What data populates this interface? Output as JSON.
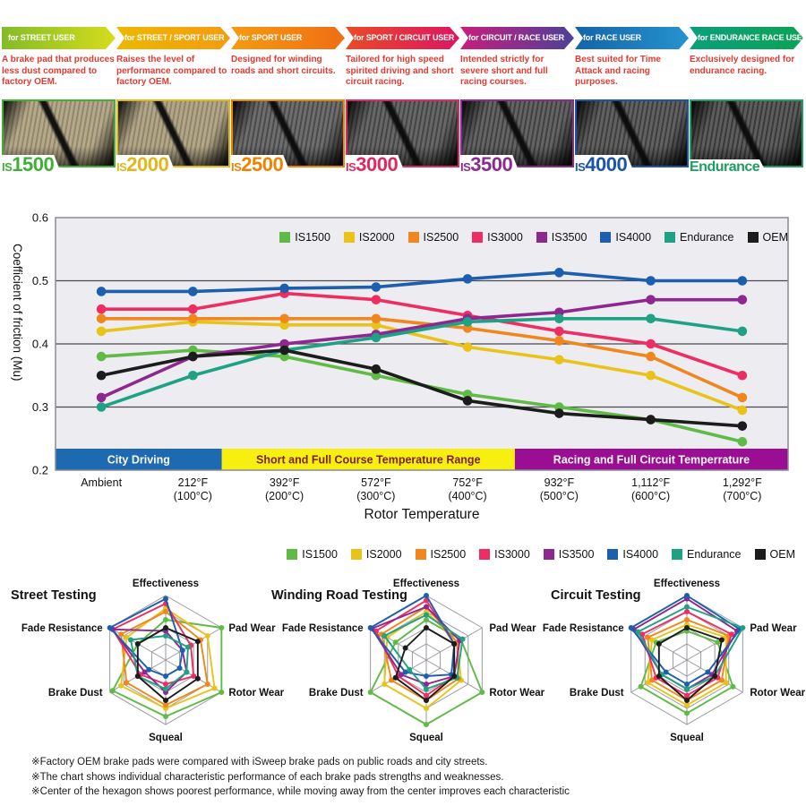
{
  "products": [
    {
      "arrow_label": "for STREET USER",
      "description": "A brake pad that produces less dust compared to factory OEM.",
      "name": "IS1500",
      "color": "#3faf36",
      "arrow_colors": [
        "#83bc28",
        "#d6dc1c"
      ],
      "pad_colors": [
        "#b5a98c",
        "#94886b"
      ]
    },
    {
      "arrow_label": "for STREET / SPORT USER",
      "description": "Raises the level of performance compared to factory OEM.",
      "name": "IS2000",
      "color": "#e3b619",
      "arrow_colors": [
        "#ecb800",
        "#f59b0f"
      ],
      "pad_colors": [
        "#b2a689",
        "#90856a"
      ]
    },
    {
      "arrow_label": "for SPORT USER",
      "description": "Designed for winding roads and short circuits.",
      "name": "IS2500",
      "color": "#ef8200",
      "arrow_colors": [
        "#f59b0f",
        "#f06d15"
      ],
      "pad_colors": [
        "#6e6e6e",
        "#4b4b4b"
      ]
    },
    {
      "arrow_label": "for SPORT / CIRCUIT USER",
      "description": "Tailored for high speed spirited driving and short circuit racing.",
      "name": "IS3000",
      "color": "#e02a5f",
      "arrow_colors": [
        "#ea4a26",
        "#da1663"
      ],
      "pad_colors": [
        "#676767",
        "#454545"
      ]
    },
    {
      "arrow_label": "for CIRCUIT / RACE USER",
      "description": "Intended strictly for severe short and full racing courses.",
      "name": "IS3500",
      "color": "#8d2a8f",
      "arrow_colors": [
        "#c91d7c",
        "#4c4198"
      ],
      "pad_colors": [
        "#646464",
        "#414141"
      ]
    },
    {
      "arrow_label": "for RACE USER",
      "description": "Best suited for Time Attack and racing purposes.",
      "name": "IS4000",
      "color": "#1b55a8",
      "arrow_colors": [
        "#1464a8",
        "#2693ce"
      ],
      "pad_colors": [
        "#616161",
        "#3e3e3e"
      ]
    },
    {
      "arrow_label": "for ENDURANCE RACE USER",
      "description": "Exclusively designed for endurance racing.",
      "name": "Endurance",
      "color": "#1e9e63",
      "arrow_colors": [
        "#0b9f7a",
        "#0ca356"
      ],
      "pad_colors": [
        "#5d5d5d",
        "#3a3a3a"
      ]
    }
  ],
  "legend": {
    "items": [
      {
        "label": "IS1500",
        "color": "#5fba46"
      },
      {
        "label": "IS2000",
        "color": "#e9c319"
      },
      {
        "label": "IS2500",
        "color": "#f0861c"
      },
      {
        "label": "IS3000",
        "color": "#ee2d62"
      },
      {
        "label": "IS3500",
        "color": "#8e2790"
      },
      {
        "label": "IS4000",
        "color": "#1c5fae"
      },
      {
        "label": "Endurance",
        "color": "#1fa183"
      },
      {
        "label": "OEM",
        "color": "#1c1c1c"
      }
    ]
  },
  "chart_data": [
    {
      "type": "line",
      "title": "",
      "xlabel": "Rotor Temperature",
      "ylabel": "Coefficient of friction (Mu)",
      "ylim": [
        0.2,
        0.6
      ],
      "yticks": [
        0.2,
        0.3,
        0.4,
        0.5,
        0.6
      ],
      "grid": true,
      "legend_position": "top-right",
      "categories": [
        "Ambient",
        "212°F\n(100°C)",
        "392°F\n(200°C)",
        "572°F\n(300°C)",
        "752°F\n(400°C)",
        "932°F\n(500°C)",
        "1,112°F\n(600°C)",
        "1,292°F\n(700°C)"
      ],
      "series": [
        {
          "name": "IS1500",
          "values": [
            0.38,
            0.39,
            0.38,
            0.35,
            0.32,
            0.3,
            0.28,
            0.245
          ]
        },
        {
          "name": "IS2000",
          "values": [
            0.42,
            0.435,
            0.43,
            0.43,
            0.395,
            0.375,
            0.35,
            0.295
          ]
        },
        {
          "name": "IS2500",
          "values": [
            0.44,
            0.44,
            0.44,
            0.44,
            0.425,
            0.405,
            0.38,
            0.315
          ]
        },
        {
          "name": "IS3000",
          "values": [
            0.455,
            0.455,
            0.48,
            0.47,
            0.445,
            0.42,
            0.4,
            0.35
          ]
        },
        {
          "name": "IS3500",
          "values": [
            0.315,
            0.38,
            0.4,
            0.415,
            0.44,
            0.45,
            0.47,
            0.47
          ]
        },
        {
          "name": "IS4000",
          "values": [
            0.483,
            0.483,
            0.488,
            0.49,
            0.503,
            0.513,
            0.5,
            0.5
          ]
        },
        {
          "name": "Endurance",
          "values": [
            0.3,
            0.35,
            0.39,
            0.41,
            0.435,
            0.44,
            0.44,
            0.42
          ]
        },
        {
          "name": "OEM",
          "values": [
            0.35,
            0.38,
            0.39,
            0.36,
            0.31,
            0.29,
            0.28,
            0.27
          ]
        }
      ],
      "bands": [
        {
          "label": "City Driving",
          "color": "#1d6ab3",
          "text_color": "#ffffff",
          "from": 0,
          "to": 0.227
        },
        {
          "label": "Short and Full Course Temperature Range",
          "color": "#f7ef0f",
          "text_color": "#7b1f1f",
          "from": 0.227,
          "to": 0.627
        },
        {
          "label": "Racing and Full Circuit Temperrature",
          "color": "#9b0d93",
          "text_color": "#ffffff",
          "from": 0.627,
          "to": 1
        }
      ]
    },
    {
      "type": "radar",
      "title": "Street Testing",
      "axes": [
        "Effectiveness",
        "Pad Wear",
        "Rotor Wear",
        "Squeal",
        "Brake Dust",
        "Fade Resistance"
      ],
      "scale": [
        0,
        4
      ],
      "rings": 4,
      "series": [
        {
          "name": "IS1500",
          "values": [
            2.5,
            4,
            4,
            3.5,
            3.8,
            2
          ]
        },
        {
          "name": "IS2000",
          "values": [
            3.2,
            3,
            3.5,
            3,
            3.2,
            2.8
          ]
        },
        {
          "name": "IS2500",
          "values": [
            3.0,
            2.5,
            3,
            2.8,
            2.8,
            3.2
          ]
        },
        {
          "name": "IS3000",
          "values": [
            3.5,
            1.8,
            2,
            1.5,
            1.8,
            3.8
          ]
        },
        {
          "name": "IS3500",
          "values": [
            1.8,
            1.2,
            1.5,
            2,
            1.5,
            3.8
          ]
        },
        {
          "name": "IS4000",
          "values": [
            3.8,
            1.2,
            1,
            1,
            1.2,
            4
          ]
        },
        {
          "name": "Endurance",
          "values": [
            1.5,
            1.6,
            1.5,
            1.8,
            2,
            2.5
          ]
        },
        {
          "name": "OEM",
          "values": [
            2,
            2.3,
            2.3,
            2.5,
            2,
            2
          ]
        }
      ]
    },
    {
      "type": "radar",
      "title": "Winding Road Testing",
      "axes": [
        "Effectiveness",
        "Pad Wear",
        "Rotor Wear",
        "Squeal",
        "Brake Dust",
        "Fade Resistance"
      ],
      "scale": [
        0,
        4
      ],
      "rings": 4,
      "series": [
        {
          "name": "IS1500",
          "values": [
            2.5,
            2.5,
            4,
            4,
            4,
            2.2
          ]
        },
        {
          "name": "IS2000",
          "values": [
            3,
            2.2,
            2.5,
            3,
            3,
            2.8
          ]
        },
        {
          "name": "IS2500",
          "values": [
            3.3,
            2.2,
            2.3,
            2.5,
            2.5,
            3.2
          ]
        },
        {
          "name": "IS3000",
          "values": [
            3.7,
            2,
            2,
            2.2,
            2,
            3.6
          ]
        },
        {
          "name": "IS3500",
          "values": [
            3.3,
            2.4,
            2,
            1.5,
            1.8,
            3.9
          ]
        },
        {
          "name": "IS4000",
          "values": [
            4,
            2,
            1.8,
            1,
            1.5,
            4
          ]
        },
        {
          "name": "Endurance",
          "values": [
            2.8,
            2.6,
            2.2,
            1.8,
            1.2,
            3
          ]
        },
        {
          "name": "OEM",
          "values": [
            2,
            2,
            2,
            2.5,
            2.2,
            1.5
          ]
        }
      ]
    },
    {
      "type": "radar",
      "title": "Circuit Testing",
      "axes": [
        "Effectiveness",
        "Pad Wear",
        "Rotor Wear",
        "Squeal",
        "Brake Dust",
        "Fade Resistance"
      ],
      "scale": [
        0,
        4
      ],
      "rings": 4,
      "series": [
        {
          "name": "IS1500",
          "values": [
            1.8,
            2.2,
            3.3,
            3.3,
            3.3,
            2.2
          ]
        },
        {
          "name": "IS2000",
          "values": [
            2.2,
            2.8,
            2.8,
            2.8,
            2.8,
            2.5
          ]
        },
        {
          "name": "IS2500",
          "values": [
            2.5,
            3,
            2.5,
            2.5,
            2.5,
            2.8
          ]
        },
        {
          "name": "IS3000",
          "values": [
            3,
            3.2,
            2.2,
            2.2,
            2.2,
            3.2
          ]
        },
        {
          "name": "IS3500",
          "values": [
            3.8,
            3.6,
            1.8,
            1.8,
            1.8,
            3.8
          ]
        },
        {
          "name": "IS4000",
          "values": [
            4,
            3.8,
            1.5,
            1.5,
            1.5,
            4
          ]
        },
        {
          "name": "Endurance",
          "values": [
            3.3,
            4,
            2,
            1.8,
            1.8,
            3.5
          ]
        },
        {
          "name": "OEM",
          "values": [
            2,
            2.5,
            2,
            2.5,
            2,
            2
          ]
        }
      ]
    }
  ],
  "footnotes": [
    "※Factory OEM brake pads were compared with iSweep brake pads on public roads and city streets.",
    "※The chart shows individual characteristic performance of each brake pads strengths and weaknesses.",
    "※Center of the hexagon shows poorest performance, while moving away from the center improves each characteristic"
  ]
}
